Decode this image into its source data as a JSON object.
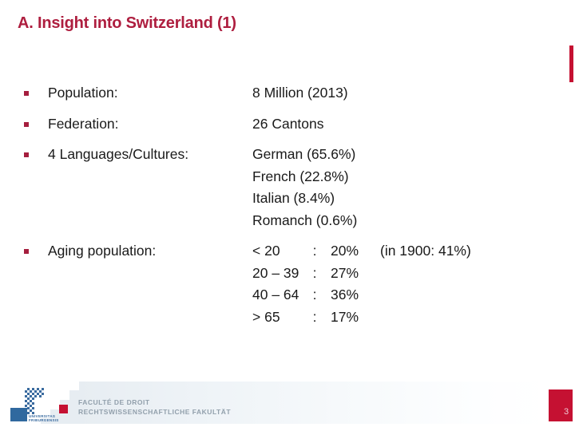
{
  "slide": {
    "title": "A. Insight into Switzerland (1)",
    "page_number": "3"
  },
  "colors": {
    "title_red": "#AE1E3F",
    "accent_red": "#C51132",
    "bullet_red": "#A51E3E",
    "footer_text_gray": "#92A0AC",
    "logo_blue": "#30699F",
    "band_gray_blue": "#E7EDF2"
  },
  "bullets": [
    {
      "label": "Population:",
      "values": [
        "8 Million (2013)"
      ]
    },
    {
      "label": "Federation:",
      "values": [
        "26 Cantons"
      ]
    },
    {
      "label": "4 Languages/Cultures:",
      "values": [
        "German (65.6%)",
        "French (22.8%)",
        "Italian (8.4%)",
        "Romanch (0.6%)"
      ]
    },
    {
      "label": "Aging population:",
      "table": [
        {
          "range": "< 20",
          "colon": ":",
          "pct": "20%",
          "note": "(in 1900: 41%)"
        },
        {
          "range": "20 – 39",
          "colon": ":",
          "pct": "27%",
          "note": ""
        },
        {
          "range": "40 – 64",
          "colon": ":",
          "pct": "36%",
          "note": ""
        },
        {
          "range": "> 65",
          "colon": ":",
          "pct": "17%",
          "note": ""
        }
      ]
    }
  ],
  "footer": {
    "line1": "FACULTÉ DE DROIT",
    "line2": "RECHTSWISSENSCHAFTLICHE FAKULTÄT",
    "logo_text_line1": "UNIVERSITAS",
    "logo_text_line2": "FRIBURGENSIS"
  }
}
